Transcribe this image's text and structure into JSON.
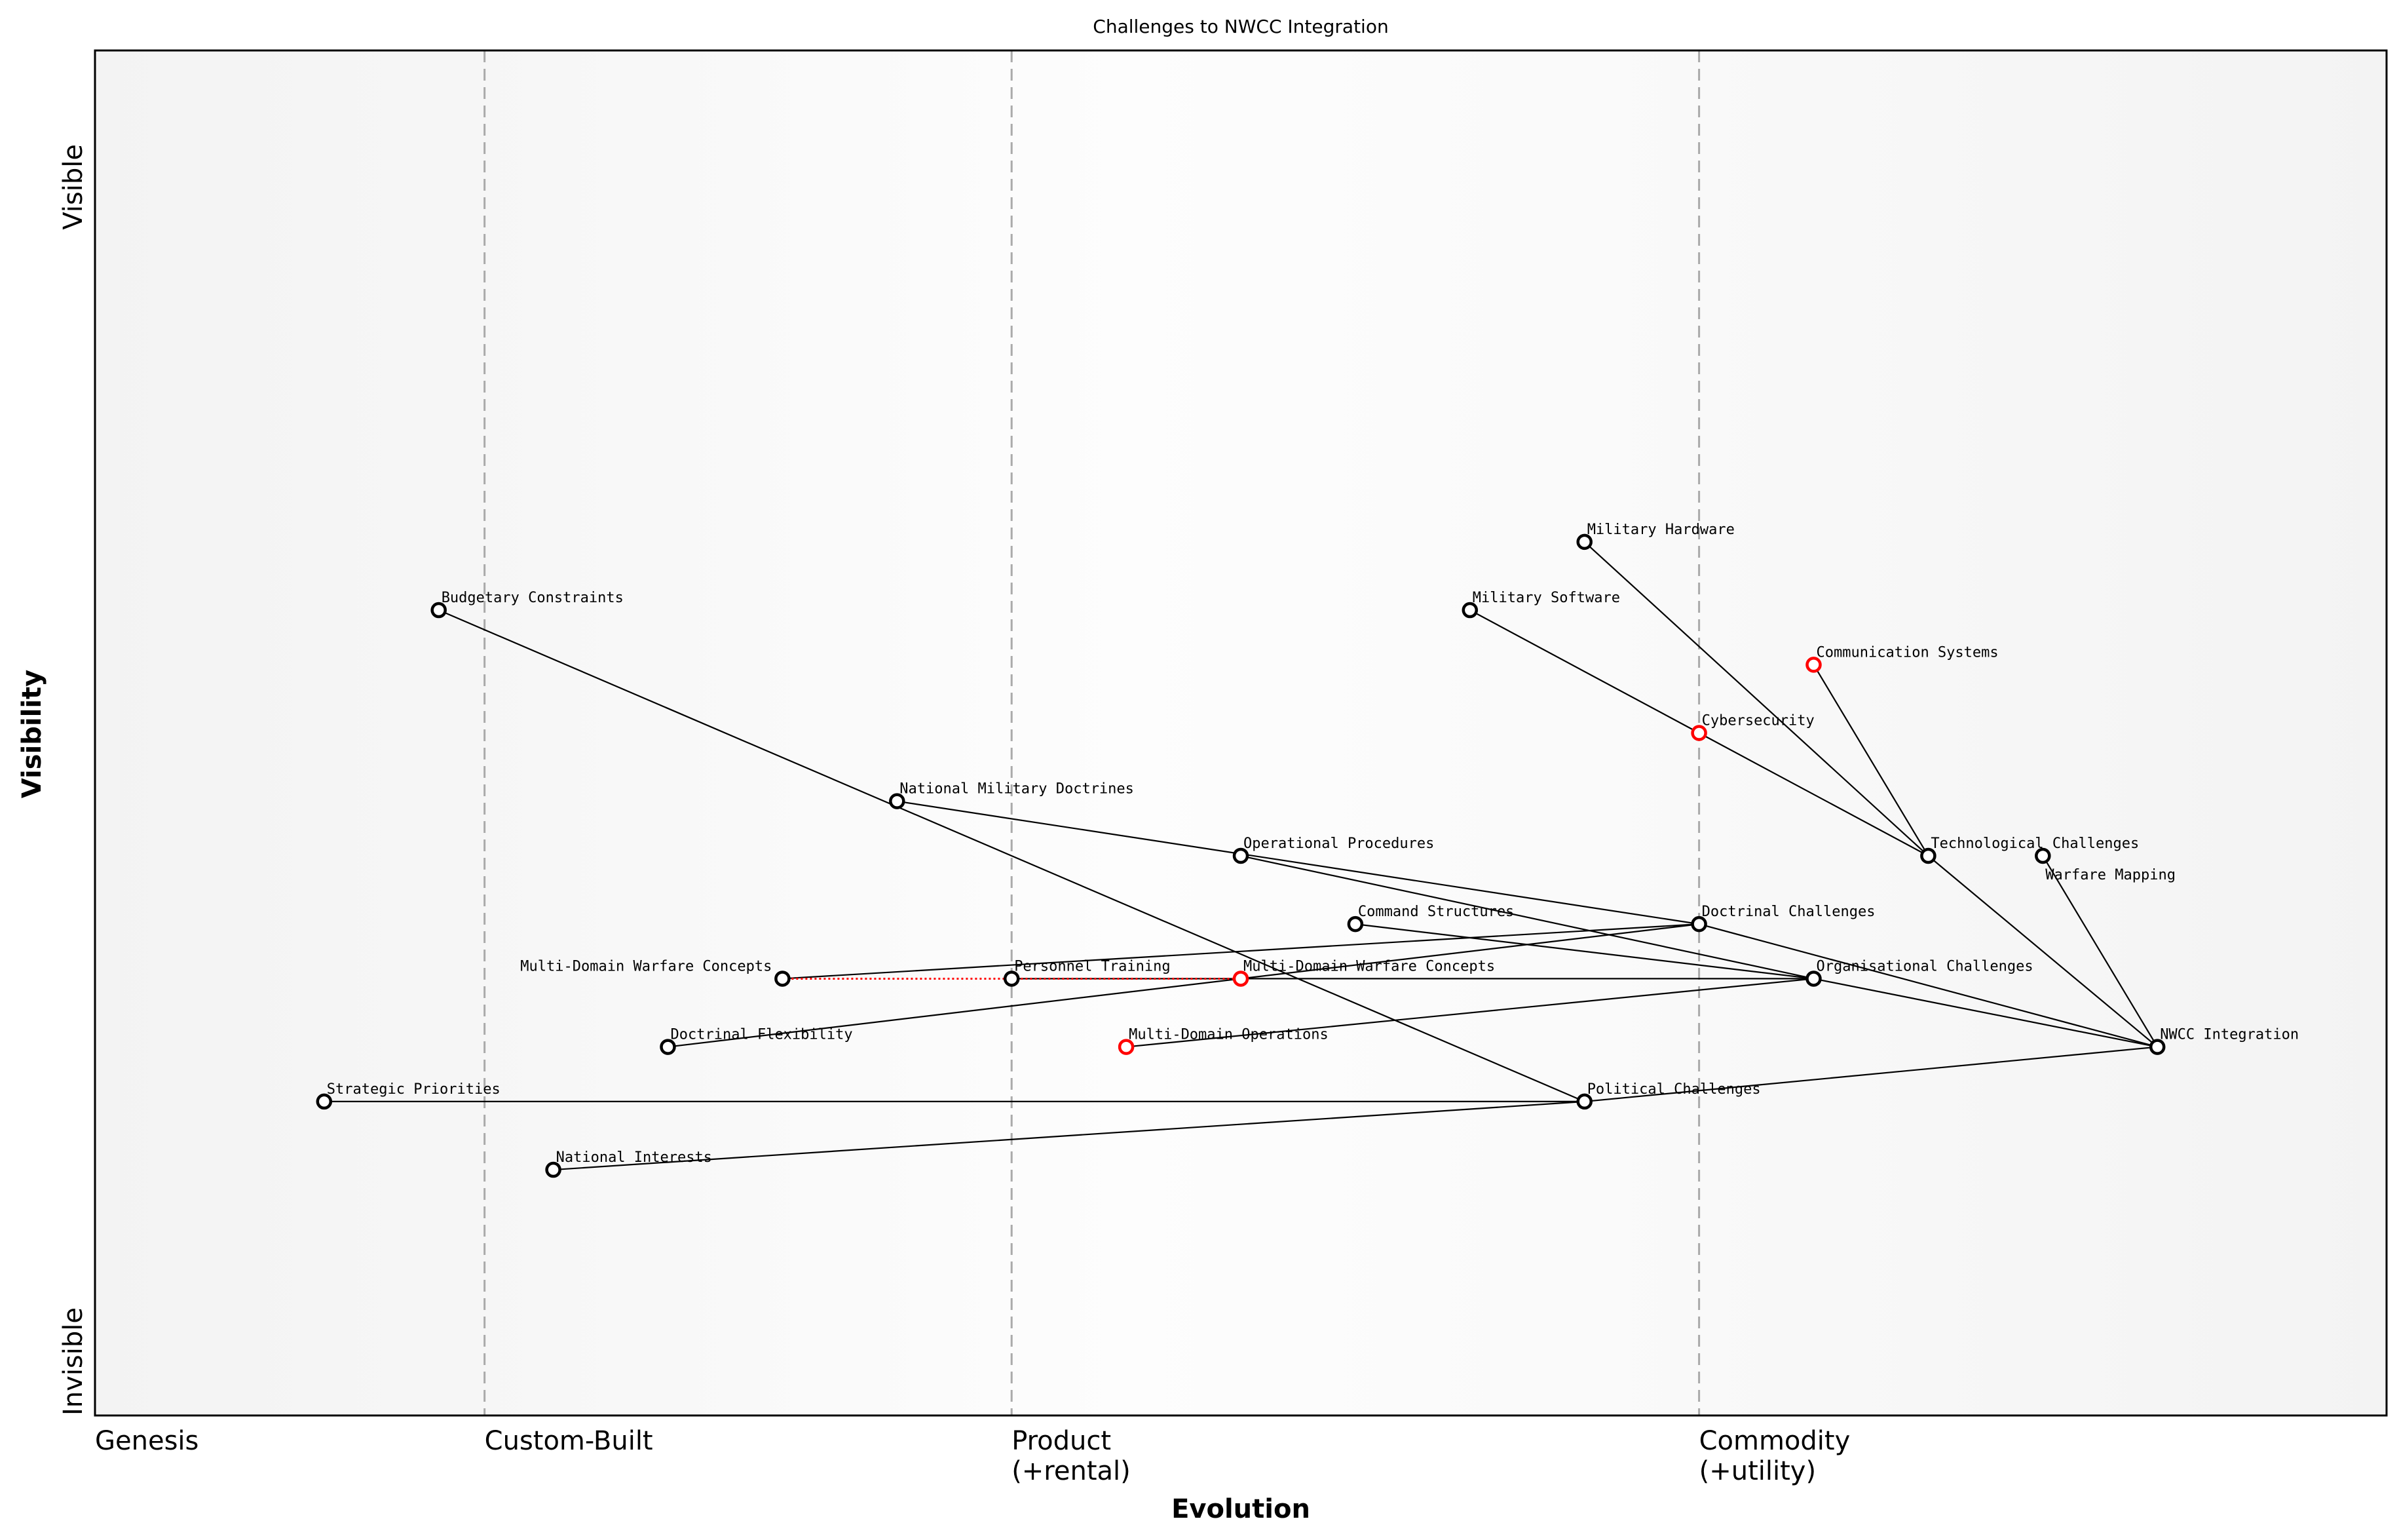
{
  "chart_data": {
    "type": "scatter",
    "subtype": "wardley-map",
    "title": "Challenges to NWCC Integration",
    "xlabel": "Evolution",
    "ylabel": "Visibility",
    "xlim": [
      0,
      1
    ],
    "ylim": [
      0,
      1
    ],
    "grid": false,
    "x_stages": [
      {
        "label": "Genesis",
        "x": 0.0
      },
      {
        "label": "Custom-Built",
        "x": 0.17
      },
      {
        "label": "Product\n(+rental)",
        "x": 0.4
      },
      {
        "label": "Commodity\n(+utility)",
        "x": 0.7
      }
    ],
    "y_ticks": [
      {
        "label": "Visible",
        "y": 0.9
      },
      {
        "label": "Invisible",
        "y": 0.0
      }
    ],
    "colors": {
      "node": "#000000",
      "highlight": "#ff0000",
      "link": "#000000",
      "stage_line": "#aaaaaa"
    },
    "nodes": [
      {
        "name": "NWCC Integration",
        "x": 0.9,
        "y": 0.27,
        "color": "#000000"
      },
      {
        "name": "Political Challenges",
        "x": 0.65,
        "y": 0.23,
        "color": "#000000"
      },
      {
        "name": "Strategic Priorities",
        "x": 0.1,
        "y": 0.23,
        "color": "#000000"
      },
      {
        "name": "National Interests",
        "x": 0.2,
        "y": 0.18,
        "color": "#000000"
      },
      {
        "name": "Budgetary Constraints",
        "x": 0.15,
        "y": 0.59,
        "color": "#000000"
      },
      {
        "name": "Doctrinal Challenges",
        "x": 0.7,
        "y": 0.36,
        "color": "#000000"
      },
      {
        "name": "National Military Doctrines",
        "x": 0.35,
        "y": 0.45,
        "color": "#000000"
      },
      {
        "name": "Doctrinal Flexibility",
        "x": 0.25,
        "y": 0.27,
        "color": "#000000"
      },
      {
        "name": "Multi-Domain Warfare Concepts",
        "x": 0.3,
        "y": 0.32,
        "color": "#000000"
      },
      {
        "name": "Organisational Challenges",
        "x": 0.75,
        "y": 0.32,
        "color": "#000000"
      },
      {
        "name": "Operational Procedures",
        "x": 0.5,
        "y": 0.41,
        "color": "#000000"
      },
      {
        "name": "Command Structures",
        "x": 0.55,
        "y": 0.36,
        "color": "#000000"
      },
      {
        "name": "Personnel Training",
        "x": 0.4,
        "y": 0.32,
        "color": "#000000"
      },
      {
        "name": "Multi-Domain Warfare Concepts",
        "x": 0.5,
        "y": 0.32,
        "color": "#ff0000"
      },
      {
        "name": "Multi-Domain Operations",
        "x": 0.45,
        "y": 0.27,
        "color": "#ff0000"
      },
      {
        "name": "Technological Challenges",
        "x": 0.8,
        "y": 0.41,
        "color": "#000000"
      },
      {
        "name": "Warfare Mapping",
        "x": 0.85,
        "y": 0.41,
        "color": "#000000"
      },
      {
        "name": "Military Hardware",
        "x": 0.65,
        "y": 0.64,
        "color": "#000000"
      },
      {
        "name": "Military Software",
        "x": 0.6,
        "y": 0.59,
        "color": "#000000"
      },
      {
        "name": "Cybersecurity",
        "x": 0.7,
        "y": 0.5,
        "color": "#ff0000"
      },
      {
        "name": "Communication Systems",
        "x": 0.75,
        "y": 0.55,
        "color": "#ff0000"
      }
    ],
    "links": [
      [
        1,
        0
      ],
      [
        2,
        1
      ],
      [
        3,
        1
      ],
      [
        4,
        1
      ],
      [
        5,
        0
      ],
      [
        6,
        5
      ],
      [
        7,
        5
      ],
      [
        8,
        5
      ],
      [
        9,
        0
      ],
      [
        10,
        9
      ],
      [
        11,
        9
      ],
      [
        12,
        9
      ],
      [
        13,
        9
      ],
      [
        14,
        9
      ],
      [
        15,
        0
      ],
      [
        16,
        0
      ],
      [
        17,
        15
      ],
      [
        18,
        19
      ],
      [
        19,
        15
      ],
      [
        20,
        15
      ]
    ],
    "evolve_links": [
      {
        "from": 8,
        "to": 13,
        "color": "#ff0000",
        "style": "dotted"
      }
    ]
  }
}
